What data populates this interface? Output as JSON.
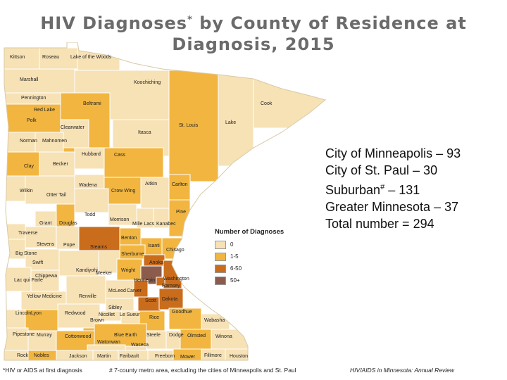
{
  "title": {
    "part1": "HIV Diagnoses",
    "mark": "*",
    "part2": " by County of Residence at",
    "line2": "Diagnosis, 2015"
  },
  "colors": {
    "zero": "#f7e2b6",
    "one_to_five": "#f2b640",
    "six_to_fifty": "#c96d1c",
    "fifty_plus": "#8b5c4c",
    "border": "#ffffff",
    "water": "#ffffff"
  },
  "legend": {
    "title": "Number of Diagnoses",
    "items": [
      {
        "label": "0",
        "color": "#f7e2b6"
      },
      {
        "label": "1-5",
        "color": "#f2b640"
      },
      {
        "label": "6-50",
        "color": "#c96d1c"
      },
      {
        "label": "50+",
        "color": "#8b5c4c"
      }
    ]
  },
  "stats": {
    "minneapolis": "City of Minneapolis – 93",
    "st_paul": "City of St. Paul – 30",
    "suburban_pre": "Suburban",
    "suburban_mark": "#",
    "suburban_post": " – 131",
    "greater_mn": "Greater Minnesota – 37",
    "total": " Total number = 294"
  },
  "footnotes": {
    "note1": "*HIV or AIDS at first diagnosis",
    "note2": "# 7-county metro area, excluding the cities of Minneapolis and St. Paul",
    "source": "HIV/AIDS in Minnesota: Annual Review"
  },
  "counties": [
    {
      "name": "Kittson",
      "level": "zero"
    },
    {
      "name": "Roseau",
      "level": "zero"
    },
    {
      "name": "Lake of the Woods",
      "level": "zero"
    },
    {
      "name": "Marshall",
      "level": "zero"
    },
    {
      "name": "Koochiching",
      "level": "zero"
    },
    {
      "name": "Pennington",
      "level": "zero"
    },
    {
      "name": "Beltrami",
      "level": "one_to_five"
    },
    {
      "name": "Cook",
      "level": "zero"
    },
    {
      "name": "Red Lake",
      "level": "zero"
    },
    {
      "name": "Polk",
      "level": "one_to_five"
    },
    {
      "name": "Clearwater",
      "level": "zero"
    },
    {
      "name": "Lake",
      "level": "zero"
    },
    {
      "name": "St. Louis",
      "level": "one_to_five"
    },
    {
      "name": "Itasca",
      "level": "zero"
    },
    {
      "name": "Norman",
      "level": "zero"
    },
    {
      "name": "Mahnomen",
      "level": "zero"
    },
    {
      "name": "Hubbard",
      "level": "zero"
    },
    {
      "name": "Cass",
      "level": "one_to_five"
    },
    {
      "name": "Clay",
      "level": "one_to_five"
    },
    {
      "name": "Becker",
      "level": "zero"
    },
    {
      "name": "Aitkin",
      "level": "zero"
    },
    {
      "name": "Carlton",
      "level": "one_to_five"
    },
    {
      "name": "Wadena",
      "level": "zero"
    },
    {
      "name": "Crow Wing",
      "level": "one_to_five"
    },
    {
      "name": "Wilkin",
      "level": "zero"
    },
    {
      "name": "Otter Tail",
      "level": "zero"
    },
    {
      "name": "Pine",
      "level": "one_to_five"
    },
    {
      "name": "Todd",
      "level": "zero"
    },
    {
      "name": "Morrison",
      "level": "zero"
    },
    {
      "name": "Grant",
      "level": "zero"
    },
    {
      "name": "Douglas",
      "level": "one_to_five"
    },
    {
      "name": "Mille Lacs",
      "level": "zero"
    },
    {
      "name": "Kanabec",
      "level": "zero"
    },
    {
      "name": "Traverse",
      "level": "zero"
    },
    {
      "name": "Benton",
      "level": "one_to_five"
    },
    {
      "name": "Stevens",
      "level": "zero"
    },
    {
      "name": "Pope",
      "level": "zero"
    },
    {
      "name": "Stearns",
      "level": "six_to_fifty"
    },
    {
      "name": "Isanti",
      "level": "one_to_five"
    },
    {
      "name": "Chisago",
      "level": "one_to_five"
    },
    {
      "name": "Big Stone",
      "level": "zero"
    },
    {
      "name": "Sherburne",
      "level": "one_to_five"
    },
    {
      "name": "Swift",
      "level": "zero"
    },
    {
      "name": "Kandiyohi",
      "level": "zero"
    },
    {
      "name": "Anoka",
      "level": "six_to_fifty"
    },
    {
      "name": "Meeker",
      "level": "zero"
    },
    {
      "name": "Wright",
      "level": "one_to_five"
    },
    {
      "name": "Chippewa",
      "level": "zero"
    },
    {
      "name": "Lac qui Parle",
      "level": "zero"
    },
    {
      "name": "Hennepin",
      "level": "fifty_plus"
    },
    {
      "name": "Washington",
      "level": "six_to_fifty"
    },
    {
      "name": "Ramsey",
      "level": "six_to_fifty"
    },
    {
      "name": "McLeod",
      "level": "zero"
    },
    {
      "name": "Carver",
      "level": "six_to_fifty"
    },
    {
      "name": "Yellow Medicine",
      "level": "zero"
    },
    {
      "name": "Renville",
      "level": "zero"
    },
    {
      "name": "Scott",
      "level": "six_to_fifty"
    },
    {
      "name": "Dakota",
      "level": "six_to_fifty"
    },
    {
      "name": "Sibley",
      "level": "zero"
    },
    {
      "name": "Goodhue",
      "level": "one_to_five"
    },
    {
      "name": "Lincoln",
      "level": "zero"
    },
    {
      "name": "Lyon",
      "level": "one_to_five"
    },
    {
      "name": "Redwood",
      "level": "zero"
    },
    {
      "name": "Nicollet",
      "level": "zero"
    },
    {
      "name": "Le Sueur",
      "level": "zero"
    },
    {
      "name": "Rice",
      "level": "one_to_five"
    },
    {
      "name": "Wabasha",
      "level": "zero"
    },
    {
      "name": "Brown",
      "level": "one_to_five"
    },
    {
      "name": "Pipestone",
      "level": "zero"
    },
    {
      "name": "Murray",
      "level": "zero"
    },
    {
      "name": "Cottonwood",
      "level": "one_to_five"
    },
    {
      "name": "Blue Earth",
      "level": "one_to_five"
    },
    {
      "name": "Steele",
      "level": "zero"
    },
    {
      "name": "Dodge",
      "level": "zero"
    },
    {
      "name": "Olmsted",
      "level": "one_to_five"
    },
    {
      "name": "Winona",
      "level": "zero"
    },
    {
      "name": "Watonwan",
      "level": "zero"
    },
    {
      "name": "Waseca",
      "level": "zero"
    },
    {
      "name": "Rock",
      "level": "zero"
    },
    {
      "name": "Nobles",
      "level": "one_to_five"
    },
    {
      "name": "Jackson",
      "level": "zero"
    },
    {
      "name": "Martin",
      "level": "zero"
    },
    {
      "name": "Faribault",
      "level": "zero"
    },
    {
      "name": "Freeborn",
      "level": "zero"
    },
    {
      "name": "Mower",
      "level": "one_to_five"
    },
    {
      "name": "Fillmore",
      "level": "zero"
    },
    {
      "name": "Houston",
      "level": "zero"
    }
  ]
}
